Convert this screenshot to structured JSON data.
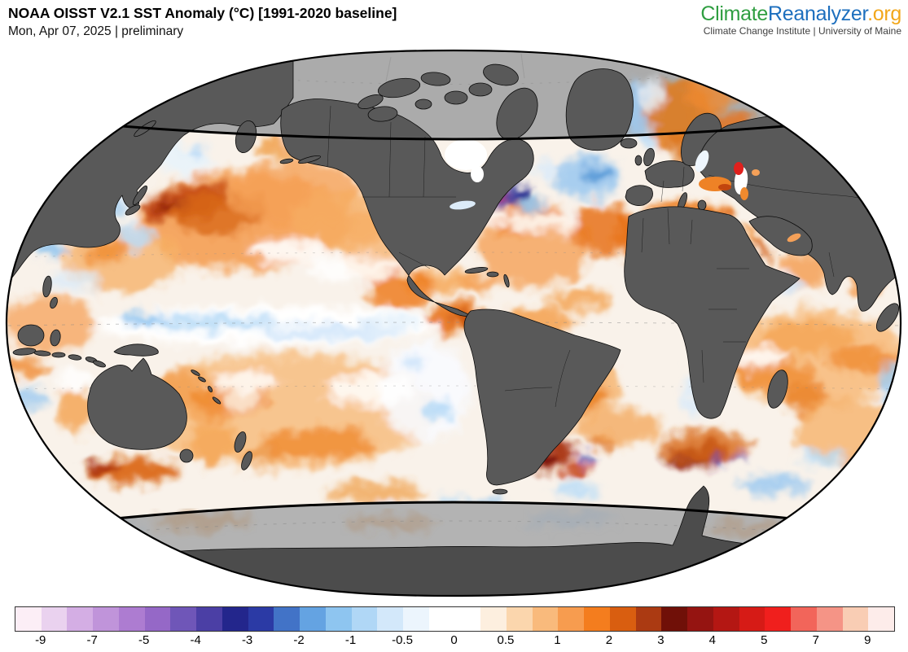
{
  "header": {
    "title": "NOAA OISST V2.1 SST Anomaly (°C) [1991-2020 baseline]",
    "date_line": "Mon, Apr 07, 2025 | preliminary"
  },
  "logo": {
    "part1": "Climate",
    "part2": "Reanalyzer",
    "part3": ".org",
    "part1_color": "#2f9e41",
    "part2_color": "#1d6fbe",
    "part3_color": "#f2a71b",
    "tagline": "Climate Change Institute | University of Maine",
    "tagline_color": "#3f3f3f"
  },
  "map": {
    "description": "Global sea surface temperature anomaly map, Winkel tripel projection",
    "colors": {
      "ocean_base": "#f9f2ea",
      "land": "#595959",
      "land_border": "#0a0a0a",
      "polar_no_data": "#ababab",
      "antarctic_band": "#b3b3b3",
      "antarctica": "#4c4c4c",
      "outline": "#000000",
      "graticule": "#888888"
    }
  },
  "colorbar": {
    "tick_labels": [
      "-9",
      "-7",
      "-5",
      "-4",
      "-3",
      "-2",
      "-1",
      "-0.5",
      "0",
      "0.5",
      "1",
      "2",
      "3",
      "4",
      "5",
      "7",
      "9"
    ],
    "segment_colors": [
      "#fceef6",
      "#ead2ef",
      "#d4aee4",
      "#c094da",
      "#ad7cd1",
      "#9568c7",
      "#6f56b8",
      "#4b3fa5",
      "#23268c",
      "#2b3aa5",
      "#4273c7",
      "#64a3e2",
      "#8ec5f0",
      "#b0d7f6",
      "#d3e8fa",
      "#ecf5fd",
      "#ffffff",
      "#ffffff",
      "#fdefdf",
      "#fbd6ad",
      "#f9ba7c",
      "#f79c4f",
      "#f47d1e",
      "#d95e10",
      "#ab3a12",
      "#701008",
      "#951411",
      "#b41713",
      "#d61b16",
      "#f01f1d",
      "#f2655a",
      "#f59486",
      "#f9cdb4",
      "#fdecea"
    ]
  }
}
